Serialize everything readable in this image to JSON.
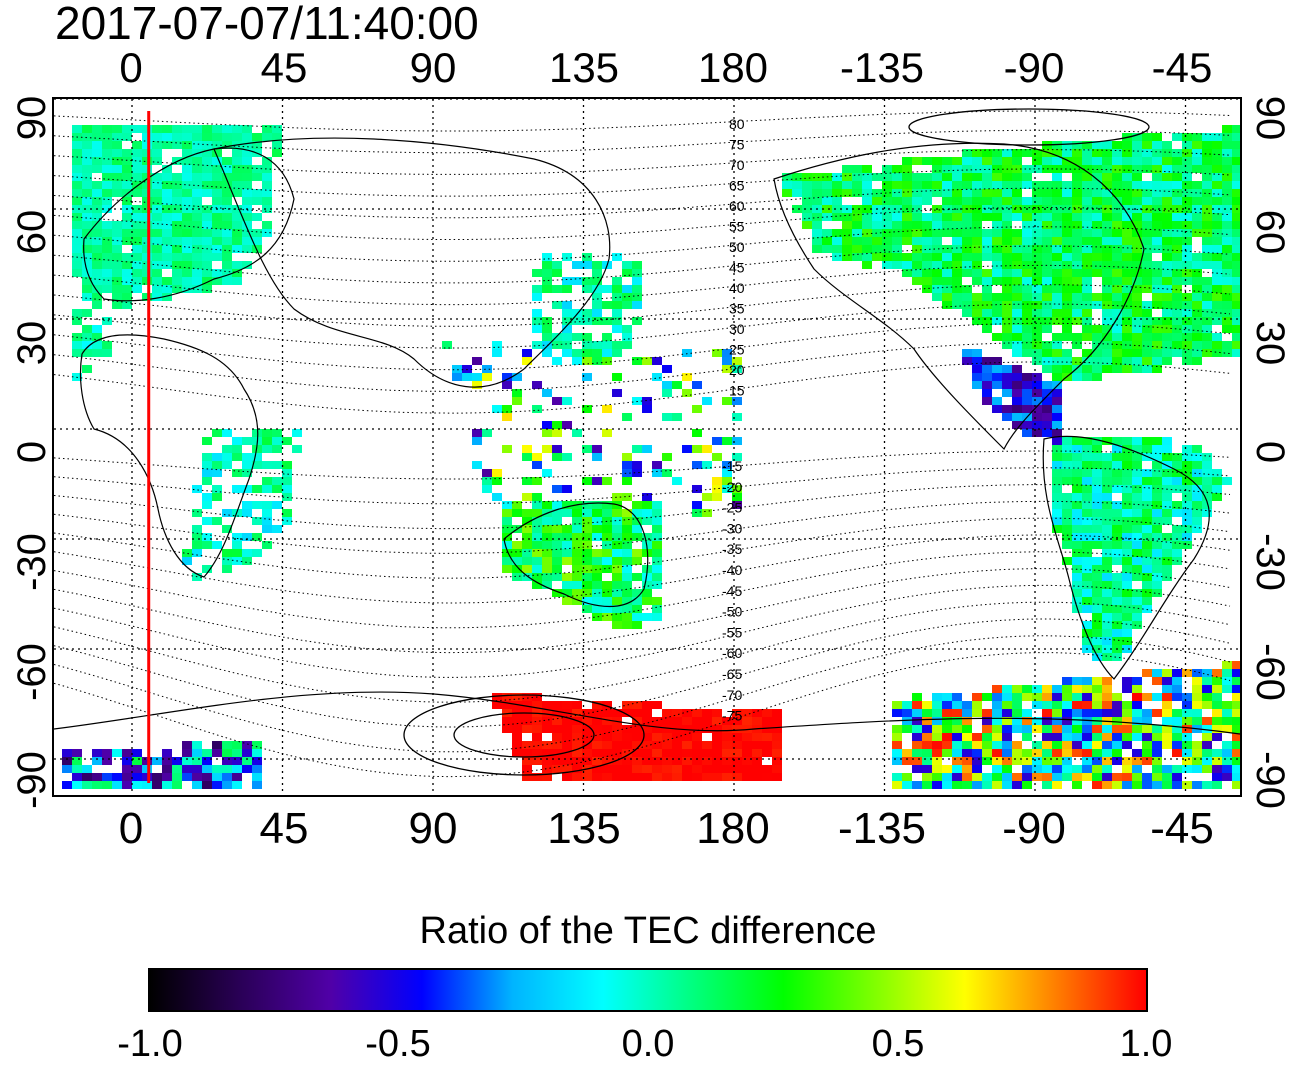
{
  "header": {
    "timestamp": "2017-07-07/11:40:00"
  },
  "axes": {
    "lon_ticks": [
      "0",
      "45",
      "90",
      "135",
      "180",
      "-135",
      "-90",
      "-45"
    ],
    "lat_ticks": [
      "90",
      "60",
      "30",
      "0",
      "-30",
      "-60",
      "-90"
    ]
  },
  "magnetic_latitude_labels": {
    "north": [
      "80",
      "75",
      "70",
      "65",
      "60",
      "55",
      "50",
      "45",
      "40",
      "35",
      "30",
      "25",
      "20",
      "15"
    ],
    "south": [
      "-15",
      "-20",
      "-25",
      "-30",
      "-35",
      "-40",
      "-45",
      "-50",
      "-55",
      "-60",
      "-65",
      "-70",
      "-75"
    ]
  },
  "terminator_longitude": 5,
  "colorbar": {
    "title": "Ratio of the TEC difference",
    "ticks": [
      "-1.0",
      "-0.5",
      "0.0",
      "0.5",
      "1.0"
    ],
    "range": [
      -1.0,
      1.0
    ],
    "stops": [
      "#000000",
      "#2a0057",
      "#5000a8",
      "#0000ff",
      "#00b4ff",
      "#00ffff",
      "#00ff7f",
      "#00ff00",
      "#7fff00",
      "#ffff00",
      "#ff7f00",
      "#ff0000"
    ]
  },
  "colors": {
    "terminator": "#ff0000",
    "positive_extreme": "#ff0000",
    "negative_extreme": "#000000"
  }
}
